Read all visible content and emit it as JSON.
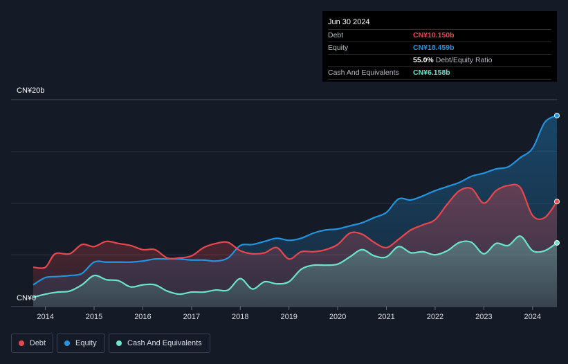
{
  "tooltip": {
    "date": "Jun 30 2024",
    "debt_label": "Debt",
    "debt_value": "CN¥10.150b",
    "equity_label": "Equity",
    "equity_value": "CN¥18.459b",
    "ratio_value": "55.0%",
    "ratio_label": "Debt/Equity Ratio",
    "cash_label": "Cash And Equivalents",
    "cash_value": "CN¥6.158b"
  },
  "y_axis": {
    "top_label": "CN¥20b",
    "bottom_label": "CN¥0"
  },
  "colors": {
    "debt": "#e9474f",
    "equity": "#2394df",
    "cash": "#6ee4cc",
    "background": "#151b26"
  },
  "legend": [
    {
      "label": "Debt",
      "color": "#e9474f"
    },
    {
      "label": "Equity",
      "color": "#2394df"
    },
    {
      "label": "Cash And Equivalents",
      "color": "#6ee4cc"
    }
  ],
  "chart_data": {
    "type": "area",
    "x_ticks": [
      "2014",
      "2015",
      "2016",
      "2017",
      "2018",
      "2019",
      "2020",
      "2021",
      "2022",
      "2023",
      "2024"
    ],
    "ylim": [
      0,
      20
    ],
    "y_unit": "CN¥ billions",
    "grid": true,
    "series": [
      {
        "name": "Debt",
        "color": "#e9474f",
        "points": [
          [
            2013.75,
            3.8
          ],
          [
            2014.0,
            3.8
          ],
          [
            2014.2,
            5.1
          ],
          [
            2014.5,
            5.1
          ],
          [
            2014.75,
            6.0
          ],
          [
            2015.0,
            5.8
          ],
          [
            2015.25,
            6.3
          ],
          [
            2015.5,
            6.1
          ],
          [
            2015.75,
            5.9
          ],
          [
            2016.0,
            5.5
          ],
          [
            2016.25,
            5.5
          ],
          [
            2016.5,
            4.7
          ],
          [
            2016.75,
            4.7
          ],
          [
            2017.0,
            4.9
          ],
          [
            2017.25,
            5.7
          ],
          [
            2017.5,
            6.1
          ],
          [
            2017.75,
            6.2
          ],
          [
            2018.0,
            5.4
          ],
          [
            2018.25,
            5.1
          ],
          [
            2018.5,
            5.2
          ],
          [
            2018.75,
            5.7
          ],
          [
            2019.0,
            4.6
          ],
          [
            2019.25,
            5.3
          ],
          [
            2019.5,
            5.3
          ],
          [
            2019.75,
            5.5
          ],
          [
            2020.0,
            6.0
          ],
          [
            2020.25,
            7.1
          ],
          [
            2020.5,
            7.0
          ],
          [
            2020.75,
            6.2
          ],
          [
            2021.0,
            5.7
          ],
          [
            2021.25,
            6.5
          ],
          [
            2021.5,
            7.4
          ],
          [
            2021.75,
            7.9
          ],
          [
            2022.0,
            8.4
          ],
          [
            2022.25,
            9.9
          ],
          [
            2022.5,
            11.2
          ],
          [
            2022.75,
            11.4
          ],
          [
            2023.0,
            10.0
          ],
          [
            2023.25,
            11.2
          ],
          [
            2023.5,
            11.7
          ],
          [
            2023.75,
            11.5
          ],
          [
            2024.0,
            8.8
          ],
          [
            2024.25,
            8.6
          ],
          [
            2024.5,
            10.15
          ]
        ]
      },
      {
        "name": "Equity",
        "color": "#2394df",
        "points": [
          [
            2013.75,
            2.1
          ],
          [
            2014.0,
            2.8
          ],
          [
            2014.25,
            2.9
          ],
          [
            2014.5,
            3.0
          ],
          [
            2014.75,
            3.2
          ],
          [
            2015.0,
            4.3
          ],
          [
            2015.25,
            4.3
          ],
          [
            2015.5,
            4.3
          ],
          [
            2015.75,
            4.3
          ],
          [
            2016.0,
            4.4
          ],
          [
            2016.25,
            4.6
          ],
          [
            2016.5,
            4.6
          ],
          [
            2016.75,
            4.6
          ],
          [
            2017.0,
            4.5
          ],
          [
            2017.25,
            4.5
          ],
          [
            2017.5,
            4.4
          ],
          [
            2017.75,
            4.7
          ],
          [
            2018.0,
            5.9
          ],
          [
            2018.25,
            6.0
          ],
          [
            2018.5,
            6.3
          ],
          [
            2018.75,
            6.6
          ],
          [
            2019.0,
            6.4
          ],
          [
            2019.25,
            6.6
          ],
          [
            2019.5,
            7.1
          ],
          [
            2019.75,
            7.4
          ],
          [
            2020.0,
            7.5
          ],
          [
            2020.25,
            7.8
          ],
          [
            2020.5,
            8.1
          ],
          [
            2020.75,
            8.6
          ],
          [
            2021.0,
            9.1
          ],
          [
            2021.25,
            10.4
          ],
          [
            2021.5,
            10.3
          ],
          [
            2021.75,
            10.7
          ],
          [
            2022.0,
            11.2
          ],
          [
            2022.25,
            11.6
          ],
          [
            2022.5,
            12.0
          ],
          [
            2022.75,
            12.6
          ],
          [
            2023.0,
            12.9
          ],
          [
            2023.25,
            13.3
          ],
          [
            2023.5,
            13.5
          ],
          [
            2023.75,
            14.4
          ],
          [
            2024.0,
            15.3
          ],
          [
            2024.25,
            17.8
          ],
          [
            2024.5,
            18.459
          ]
        ]
      },
      {
        "name": "Cash And Equivalents",
        "color": "#6ee4cc",
        "points": [
          [
            2013.75,
            0.9
          ],
          [
            2014.0,
            1.2
          ],
          [
            2014.25,
            1.4
          ],
          [
            2014.5,
            1.5
          ],
          [
            2014.75,
            2.1
          ],
          [
            2015.0,
            3.0
          ],
          [
            2015.25,
            2.6
          ],
          [
            2015.5,
            2.5
          ],
          [
            2015.75,
            1.9
          ],
          [
            2016.0,
            2.1
          ],
          [
            2016.25,
            2.1
          ],
          [
            2016.5,
            1.5
          ],
          [
            2016.75,
            1.2
          ],
          [
            2017.0,
            1.4
          ],
          [
            2017.25,
            1.4
          ],
          [
            2017.5,
            1.6
          ],
          [
            2017.75,
            1.6
          ],
          [
            2018.0,
            2.7
          ],
          [
            2018.25,
            1.7
          ],
          [
            2018.5,
            2.4
          ],
          [
            2018.75,
            2.2
          ],
          [
            2019.0,
            2.4
          ],
          [
            2019.25,
            3.6
          ],
          [
            2019.5,
            4.0
          ],
          [
            2019.75,
            4.0
          ],
          [
            2020.0,
            4.1
          ],
          [
            2020.25,
            4.8
          ],
          [
            2020.5,
            5.5
          ],
          [
            2020.75,
            4.9
          ],
          [
            2021.0,
            4.8
          ],
          [
            2021.25,
            5.8
          ],
          [
            2021.5,
            5.2
          ],
          [
            2021.75,
            5.3
          ],
          [
            2022.0,
            5.0
          ],
          [
            2022.25,
            5.4
          ],
          [
            2022.5,
            6.2
          ],
          [
            2022.75,
            6.2
          ],
          [
            2023.0,
            5.1
          ],
          [
            2023.25,
            6.1
          ],
          [
            2023.5,
            5.9
          ],
          [
            2023.75,
            6.8
          ],
          [
            2024.0,
            5.4
          ],
          [
            2024.25,
            5.4
          ],
          [
            2024.5,
            6.158
          ]
        ]
      }
    ]
  }
}
